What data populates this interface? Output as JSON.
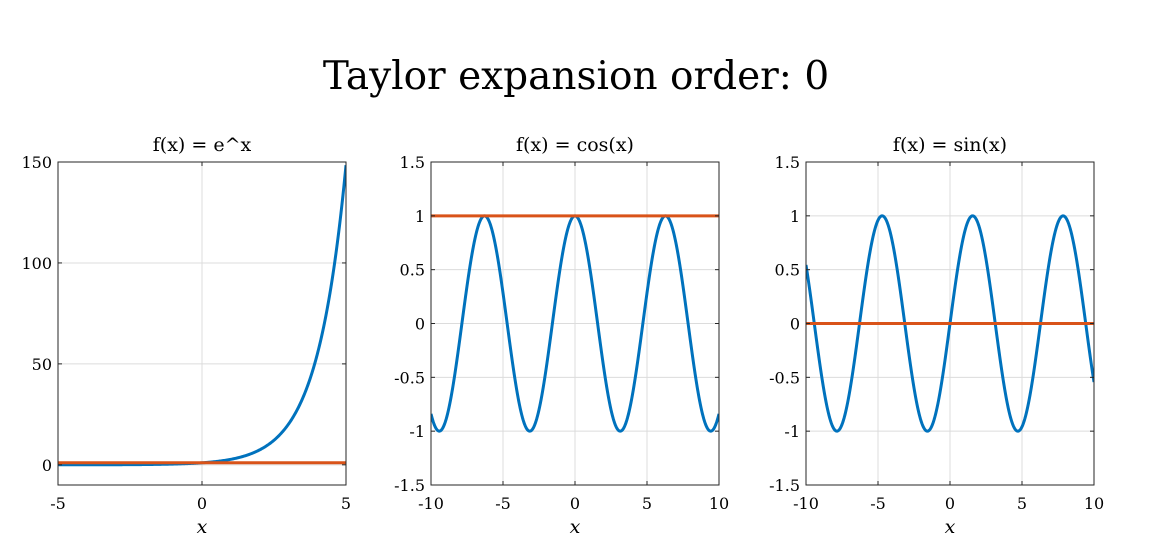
{
  "figure": {
    "suptitle": "Taylor expansion order: 0"
  },
  "colors": {
    "function": "#0072BD",
    "approximation": "#D95319",
    "grid": "#dcdcdc",
    "axis": "#262626"
  },
  "chart_data": [
    {
      "type": "line",
      "title": "f(x) = e^x",
      "xlabel": "x",
      "ylabel": "",
      "xlim": [
        -5,
        5
      ],
      "ylim": [
        -10,
        150
      ],
      "xticks": [
        -5,
        0,
        5
      ],
      "yticks": [
        0,
        50,
        100,
        150
      ],
      "xtick_labels": [
        "-5",
        "0",
        "5"
      ],
      "ytick_labels": [
        "0",
        "50",
        "100",
        "150"
      ],
      "grid": true,
      "series": [
        {
          "function": "exp",
          "x_range": [
            -5,
            5
          ],
          "color": "#0072BD"
        },
        {
          "function": "const",
          "value": 1,
          "x_range": [
            -5,
            5
          ],
          "color": "#D95319"
        }
      ]
    },
    {
      "type": "line",
      "title": "f(x) = cos(x)",
      "xlabel": "x",
      "ylabel": "",
      "xlim": [
        -10,
        10
      ],
      "ylim": [
        -1.5,
        1.5
      ],
      "xticks": [
        -10,
        -5,
        0,
        5,
        10
      ],
      "yticks": [
        -1.5,
        -1,
        -0.5,
        0,
        0.5,
        1,
        1.5
      ],
      "xtick_labels": [
        "-10",
        "-5",
        "0",
        "5",
        "10"
      ],
      "ytick_labels": [
        "-1.5",
        "-1",
        "-0.5",
        "0",
        "0.5",
        "1",
        "1.5"
      ],
      "grid": true,
      "series": [
        {
          "function": "cos",
          "x_range": [
            -10,
            10
          ],
          "color": "#0072BD"
        },
        {
          "function": "const",
          "value": 1,
          "x_range": [
            -10,
            10
          ],
          "color": "#D95319"
        }
      ]
    },
    {
      "type": "line",
      "title": "f(x) = sin(x)",
      "xlabel": "x",
      "ylabel": "",
      "xlim": [
        -10,
        10
      ],
      "ylim": [
        -1.5,
        1.5
      ],
      "xticks": [
        -10,
        -5,
        0,
        5,
        10
      ],
      "yticks": [
        -1.5,
        -1,
        -0.5,
        0,
        0.5,
        1,
        1.5
      ],
      "xtick_labels": [
        "-10",
        "-5",
        "0",
        "5",
        "10"
      ],
      "ytick_labels": [
        "-1.5",
        "-1",
        "-0.5",
        "0",
        "0.5",
        "1",
        "1.5"
      ],
      "grid": true,
      "series": [
        {
          "function": "sin",
          "x_range": [
            -10,
            10
          ],
          "color": "#0072BD"
        },
        {
          "function": "const",
          "value": 0,
          "x_range": [
            -10,
            10
          ],
          "color": "#D95319"
        }
      ]
    }
  ]
}
